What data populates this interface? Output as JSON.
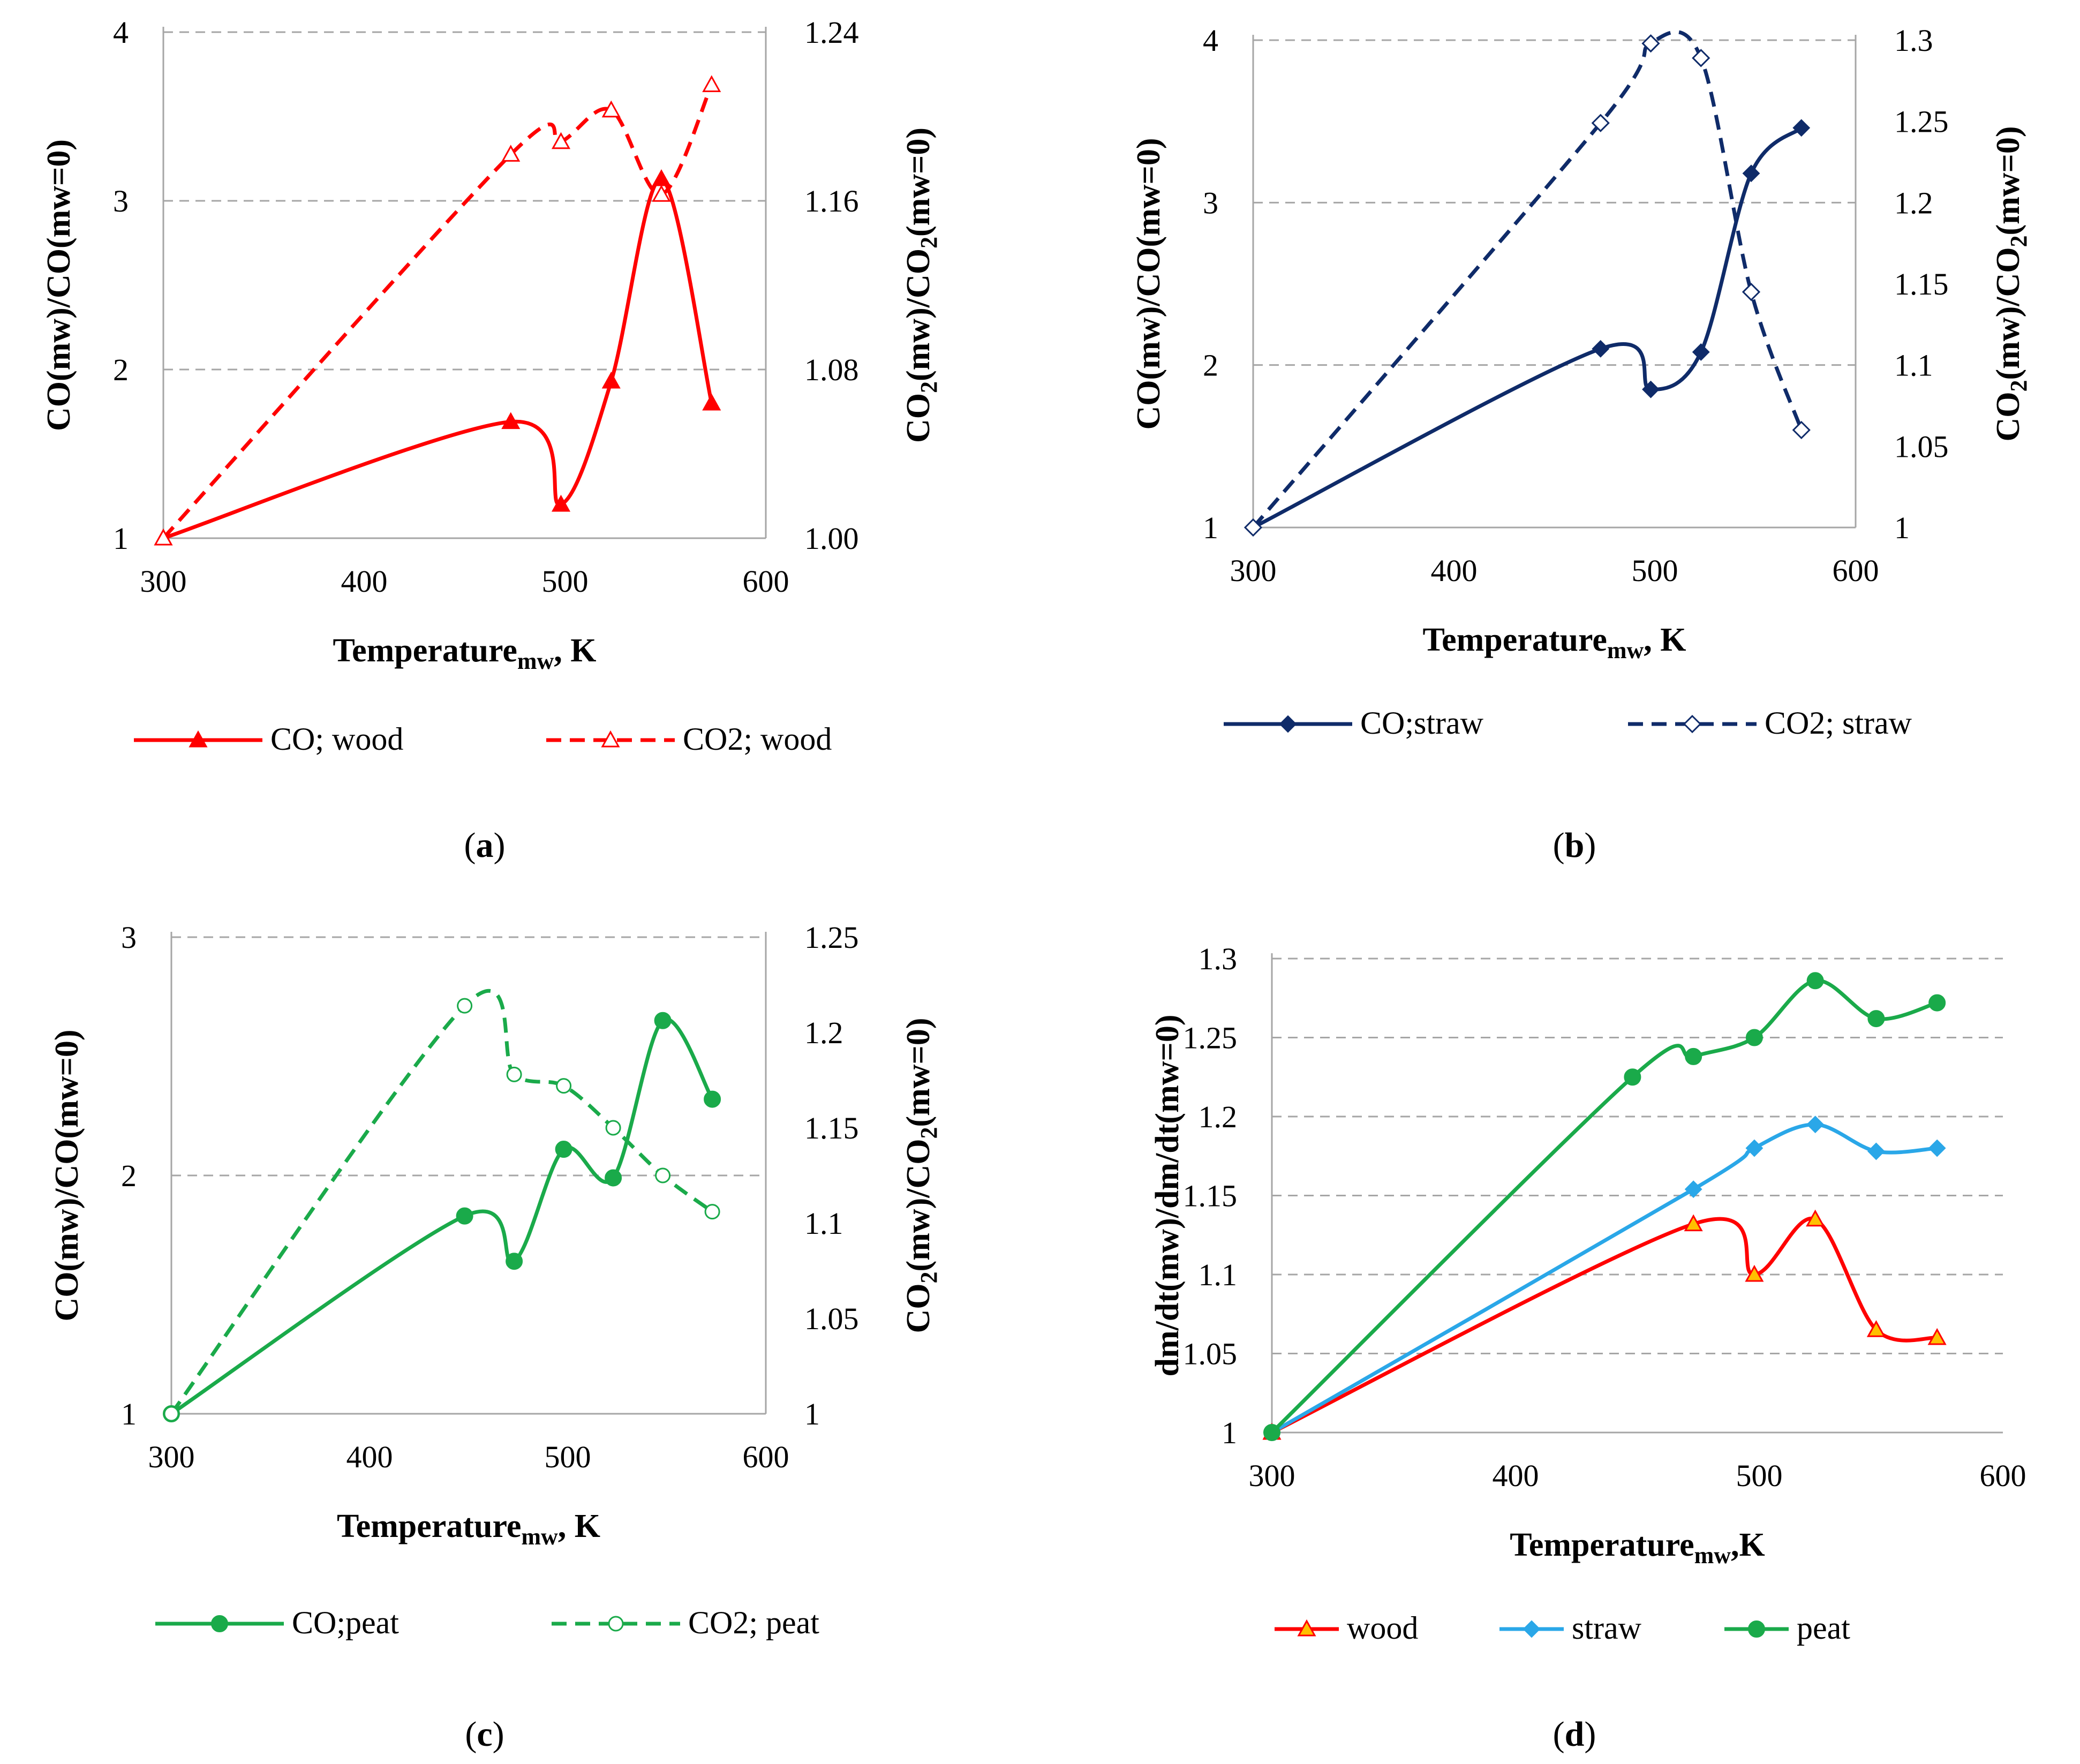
{
  "chart_data": [
    {
      "id": "a",
      "type": "line",
      "caption_letter": "a",
      "x_axis": {
        "label_main": "Temperature",
        "label_sub": "mw",
        "label_suffix": ", K",
        "range": [
          300,
          600
        ],
        "ticks": [
          "300",
          "400",
          "500",
          "600"
        ]
      },
      "y_left": {
        "label": "CO(mw)/CO(mw=0)",
        "range": [
          1,
          4
        ],
        "ticks": [
          "1",
          "2",
          "3",
          "4"
        ]
      },
      "y_right": {
        "label_parts": [
          "CO",
          "2",
          "(mw)/CO",
          "2",
          "(mw=0)"
        ],
        "range": [
          1.0,
          1.24
        ],
        "ticks": [
          "1.00",
          "1.08",
          "1.16",
          "1.24"
        ]
      },
      "gridlines": "dashed horizontal at right-axis ticks",
      "series": [
        {
          "name": "CO; wood",
          "axis": "left",
          "color": "#ff0000",
          "dash": false,
          "marker": "triangle-filled",
          "x": [
            300,
            473,
            498,
            523,
            548,
            573
          ],
          "y": [
            1.0,
            1.69,
            1.2,
            1.93,
            3.13,
            1.8
          ]
        },
        {
          "name": "CO2; wood",
          "axis": "right",
          "color": "#ff0000",
          "dash": true,
          "marker": "triangle-open",
          "x": [
            300,
            473,
            498,
            523,
            548,
            573
          ],
          "y": [
            1.0,
            1.182,
            1.188,
            1.203,
            1.163,
            1.215
          ]
        }
      ],
      "legend": [
        "CO; wood",
        "CO2; wood"
      ]
    },
    {
      "id": "b",
      "type": "line",
      "caption_letter": "b",
      "x_axis": {
        "label_main": "Temperature",
        "label_sub": "mw",
        "label_suffix": ", K",
        "range": [
          300,
          600
        ],
        "ticks": [
          "300",
          "400",
          "500",
          "600"
        ]
      },
      "y_left": {
        "label": "CO(mw)/CO(mw=0)",
        "range": [
          1,
          4
        ],
        "ticks": [
          "1",
          "2",
          "3",
          "4"
        ]
      },
      "y_right": {
        "label_parts": [
          "CO",
          "2",
          "(mw)/CO",
          "2",
          "(mw=0)"
        ],
        "range": [
          1,
          1.3
        ],
        "ticks": [
          "1",
          "1.05",
          "1.1",
          "1.15",
          "1.2",
          "1.25",
          "1.3"
        ]
      },
      "gridlines": "dashed horizontal at left-axis ticks",
      "series": [
        {
          "name": "CO;straw",
          "axis": "left",
          "color": "#0f2b69",
          "dash": false,
          "marker": "diamond-filled",
          "x": [
            300,
            473,
            498,
            523,
            548,
            573
          ],
          "y": [
            1.0,
            2.1,
            1.85,
            2.08,
            3.18,
            3.46
          ]
        },
        {
          "name": "CO2; straw",
          "axis": "right",
          "color": "#0f2b69",
          "dash": true,
          "marker": "diamond-open",
          "x": [
            300,
            473,
            498,
            523,
            548,
            573
          ],
          "y": [
            1.0,
            1.249,
            1.298,
            1.289,
            1.145,
            1.06
          ]
        }
      ],
      "legend": [
        "CO;straw",
        "CO2; straw"
      ]
    },
    {
      "id": "c",
      "type": "line",
      "caption_letter": "c",
      "x_axis": {
        "label_main": "Temperature",
        "label_sub": "mw",
        "label_suffix": ", K",
        "range": [
          300,
          600
        ],
        "ticks": [
          "300",
          "400",
          "500",
          "600"
        ]
      },
      "y_left": {
        "label": "CO(mw)/CO(mw=0)",
        "range": [
          1,
          3
        ],
        "ticks": [
          "1",
          "2",
          "3"
        ]
      },
      "y_right": {
        "label_parts": [
          "CO",
          "2",
          "(mw)/CO",
          "2",
          "(mw=0)"
        ],
        "range": [
          1,
          1.25
        ],
        "ticks": [
          "1",
          "1.05",
          "1.1",
          "1.15",
          "1.2",
          "1.25"
        ]
      },
      "gridlines": "dashed horizontal at left-axis ticks",
      "series": [
        {
          "name": "CO;peat",
          "axis": "left",
          "color": "#1aaa4a",
          "dash": false,
          "marker": "circle-filled",
          "x": [
            300,
            448,
            473,
            498,
            523,
            548,
            573
          ],
          "y": [
            1.0,
            1.83,
            1.64,
            2.11,
            1.99,
            2.65,
            2.32
          ]
        },
        {
          "name": "CO2; peat",
          "axis": "right",
          "color": "#1aaa4a",
          "dash": true,
          "marker": "circle-open",
          "x": [
            300,
            448,
            473,
            498,
            523,
            548,
            573
          ],
          "y": [
            1.0,
            1.214,
            1.178,
            1.172,
            1.15,
            1.125,
            1.106
          ]
        }
      ],
      "legend": [
        "CO;peat",
        "CO2; peat"
      ]
    },
    {
      "id": "d",
      "type": "line",
      "caption_letter": "d",
      "x_axis": {
        "label_main": "Temperature",
        "label_sub": "mw",
        "label_suffix": ",K",
        "range": [
          300,
          600
        ],
        "ticks": [
          "300",
          "400",
          "500",
          "600"
        ]
      },
      "y_left": {
        "label": "dm/dt(mw)/dm/dt(mw=0)",
        "range": [
          1,
          1.3
        ],
        "ticks": [
          "1",
          "1.05",
          "1.1",
          "1.15",
          "1.2",
          "1.25",
          "1.3"
        ]
      },
      "y_right": null,
      "gridlines": "dashed horizontal at left-axis ticks",
      "series": [
        {
          "name": "wood",
          "axis": "left",
          "color": "#ff0000",
          "dash": false,
          "marker": "triangle-orange",
          "x": [
            300,
            473,
            498,
            523,
            548,
            573
          ],
          "y": [
            1.0,
            1.132,
            1.1,
            1.135,
            1.065,
            1.06
          ]
        },
        {
          "name": "straw",
          "axis": "left",
          "color": "#2aa7e8",
          "dash": false,
          "marker": "diamond-filled",
          "x": [
            300,
            473,
            498,
            523,
            548,
            573
          ],
          "y": [
            1.0,
            1.154,
            1.18,
            1.195,
            1.178,
            1.18
          ]
        },
        {
          "name": "peat",
          "axis": "left",
          "color": "#1aaa4a",
          "dash": false,
          "marker": "circle-filled",
          "x": [
            300,
            448,
            473,
            498,
            523,
            548,
            573
          ],
          "y": [
            1.0,
            1.225,
            1.238,
            1.25,
            1.286,
            1.262,
            1.272
          ]
        }
      ],
      "legend": [
        "wood",
        "straw",
        "peat"
      ]
    }
  ]
}
